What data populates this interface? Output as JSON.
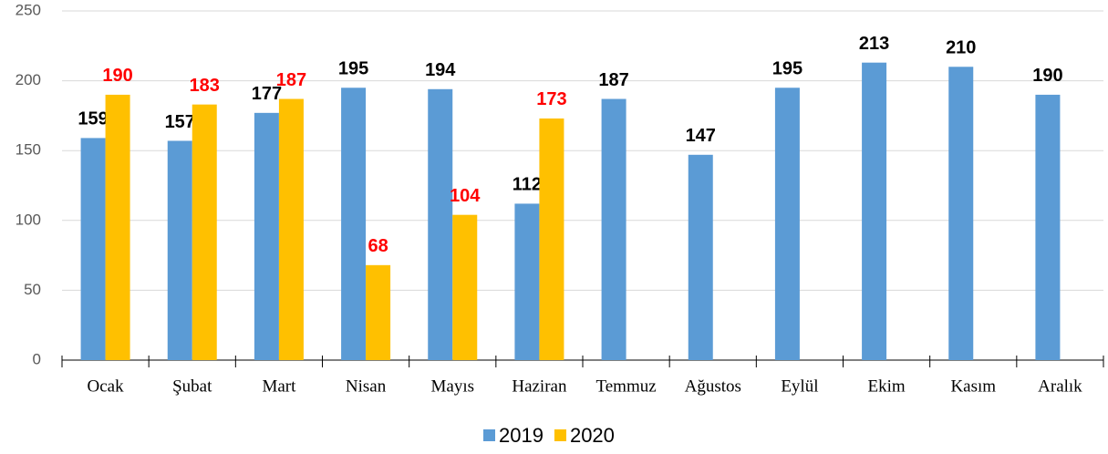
{
  "chart_data": {
    "type": "bar",
    "categories": [
      "Ocak",
      "Şubat",
      "Mart",
      "Nisan",
      "Mayıs",
      "Haziran",
      "Temmuz",
      "Ağustos",
      "Eylül",
      "Ekim",
      "Kasım",
      "Aralık"
    ],
    "series": [
      {
        "name": "2019",
        "color": "#5b9bd5",
        "label_color": "#000000",
        "values": [
          159,
          157,
          177,
          195,
          194,
          112,
          187,
          147,
          195,
          213,
          210,
          190
        ]
      },
      {
        "name": "2020",
        "color": "#ffc000",
        "label_color": "#ff0000",
        "values": [
          190,
          183,
          187,
          68,
          104,
          173,
          null,
          null,
          null,
          null,
          null,
          null
        ]
      }
    ],
    "ylim": [
      0,
      250
    ],
    "yticks": [
      0,
      50,
      100,
      150,
      200,
      250
    ],
    "grid": true,
    "legend": "bottom"
  }
}
